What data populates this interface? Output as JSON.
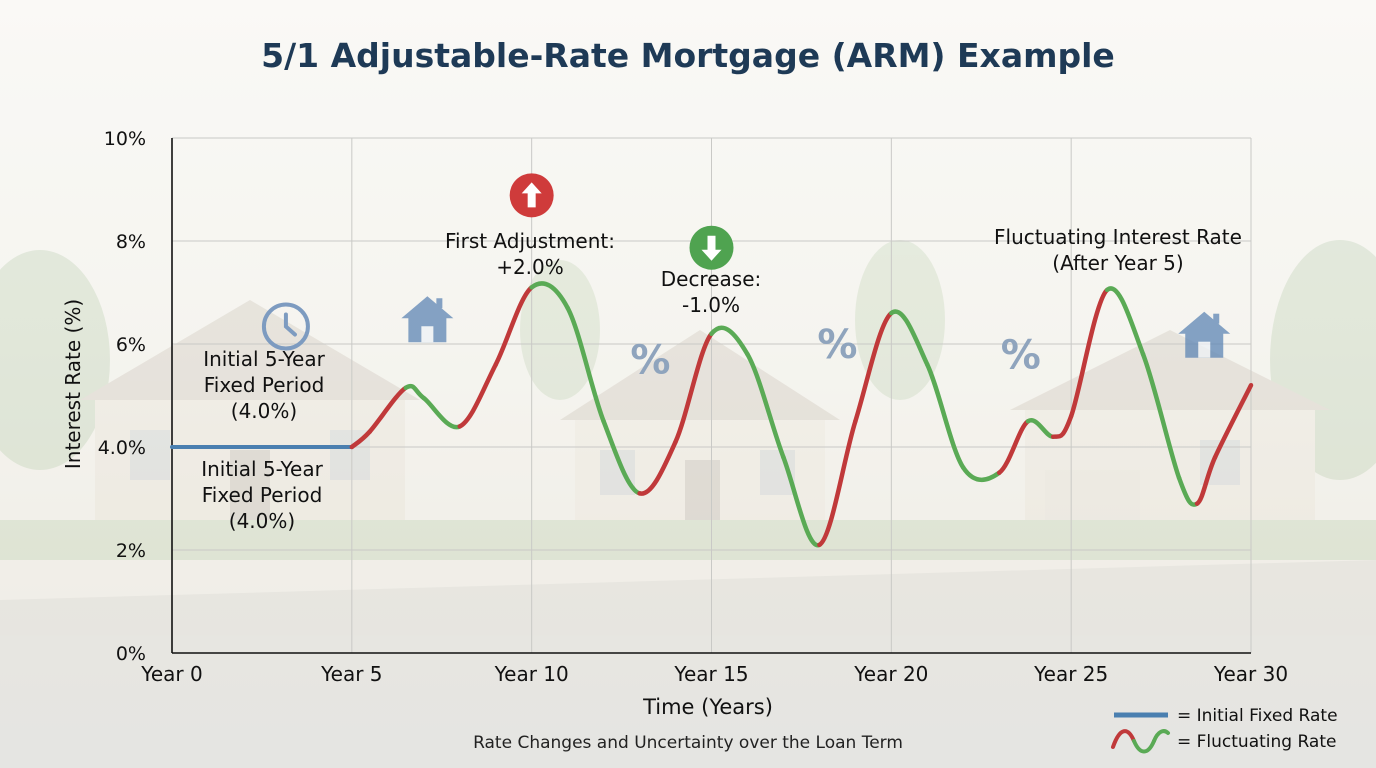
{
  "chart_data": {
    "type": "line",
    "title": "5/1 Adjustable-Rate Mortgage (ARM) Example",
    "subtitle": "Rate Changes and Uncertainty over the Loan Term",
    "xlabel": "Time (Years)",
    "ylabel": "Interest Rate (%)",
    "xlim": [
      0,
      30
    ],
    "ylim": [
      0,
      10
    ],
    "grid": true,
    "x_ticks": [
      {
        "value": 0,
        "label": "Year 0"
      },
      {
        "value": 5,
        "label": "Year 5"
      },
      {
        "value": 10,
        "label": "Year 10"
      },
      {
        "value": 15,
        "label": "Year 15"
      },
      {
        "value": 20,
        "label": "Year 20"
      },
      {
        "value": 25,
        "label": "Year 25"
      },
      {
        "value": 30,
        "label": "Year 30"
      }
    ],
    "y_ticks": [
      {
        "value": 0,
        "label": "0%"
      },
      {
        "value": 2,
        "label": "2%"
      },
      {
        "value": 4,
        "label": "4.0%"
      },
      {
        "value": 6,
        "label": "6%"
      },
      {
        "value": 8,
        "label": "8%"
      },
      {
        "value": 10,
        "label": "10%"
      }
    ],
    "legend_position": "bottom-right",
    "series": [
      {
        "name": "Initial Fixed Rate",
        "color": "#4a7fb0",
        "x": [
          0,
          5
        ],
        "y": [
          4.0,
          4.0
        ]
      },
      {
        "name": "Fluctuating Rate",
        "colors": {
          "rising": "#c0393a",
          "falling": "#5aaa55"
        },
        "x": [
          5,
          5.5,
          6.5,
          7.0,
          8.0,
          9.0,
          10.0,
          11.0,
          12.0,
          13.0,
          14.0,
          15.0,
          16.0,
          17.0,
          18.0,
          19.0,
          20.0,
          21.0,
          22.0,
          23.0,
          23.8,
          24.5,
          25.0,
          26.0,
          27.0,
          28.0,
          28.5,
          29.0,
          30.0
        ],
        "y": [
          4.0,
          4.3,
          5.15,
          4.95,
          4.4,
          5.6,
          7.1,
          6.7,
          4.5,
          3.1,
          4.1,
          6.2,
          5.8,
          3.8,
          2.1,
          4.5,
          6.6,
          5.6,
          3.6,
          3.5,
          4.5,
          4.2,
          4.6,
          7.05,
          5.8,
          3.4,
          2.9,
          3.8,
          5.2
        ]
      }
    ],
    "annotations": [
      {
        "x": 10,
        "y": 7.1,
        "icon": "arrow-up-icon",
        "lines": [
          "First Adjustment:",
          "+2.0%"
        ]
      },
      {
        "x": 15,
        "y": 6.2,
        "icon": "arrow-down-icon",
        "lines": [
          "Decrease:",
          "-1.0%"
        ]
      },
      {
        "x": 25,
        "y": 7.05,
        "icon": "",
        "lines": [
          "Fluctuating Interest Rate",
          "(After Year 5)"
        ]
      },
      {
        "x": 2.5,
        "y": 5.0,
        "icon": "clock-icon",
        "lines": [
          "Initial 5-Year",
          "Fixed Period",
          "(4.0%)"
        ]
      },
      {
        "x": 2.5,
        "y": 2.8,
        "icon": "",
        "lines": [
          "Initial 5-Year",
          "Fixed Period",
          "(4.0%)"
        ]
      }
    ],
    "decorations": [
      {
        "icon": "house-icon",
        "x": 7.1,
        "y": 6.5
      },
      {
        "icon": "percent-icon",
        "x": 13.3,
        "y": 5.7
      },
      {
        "icon": "percent-icon",
        "x": 18.5,
        "y": 6.0
      },
      {
        "icon": "percent-icon",
        "x": 23.6,
        "y": 5.8
      },
      {
        "icon": "house-icon",
        "x": 28.7,
        "y": 6.2
      }
    ],
    "legend": [
      {
        "label": "= Initial Fixed Rate",
        "icon": "legend-fixed-line-icon"
      },
      {
        "label": "= Fluctuating Rate",
        "icon": "legend-wave-icon"
      }
    ]
  }
}
